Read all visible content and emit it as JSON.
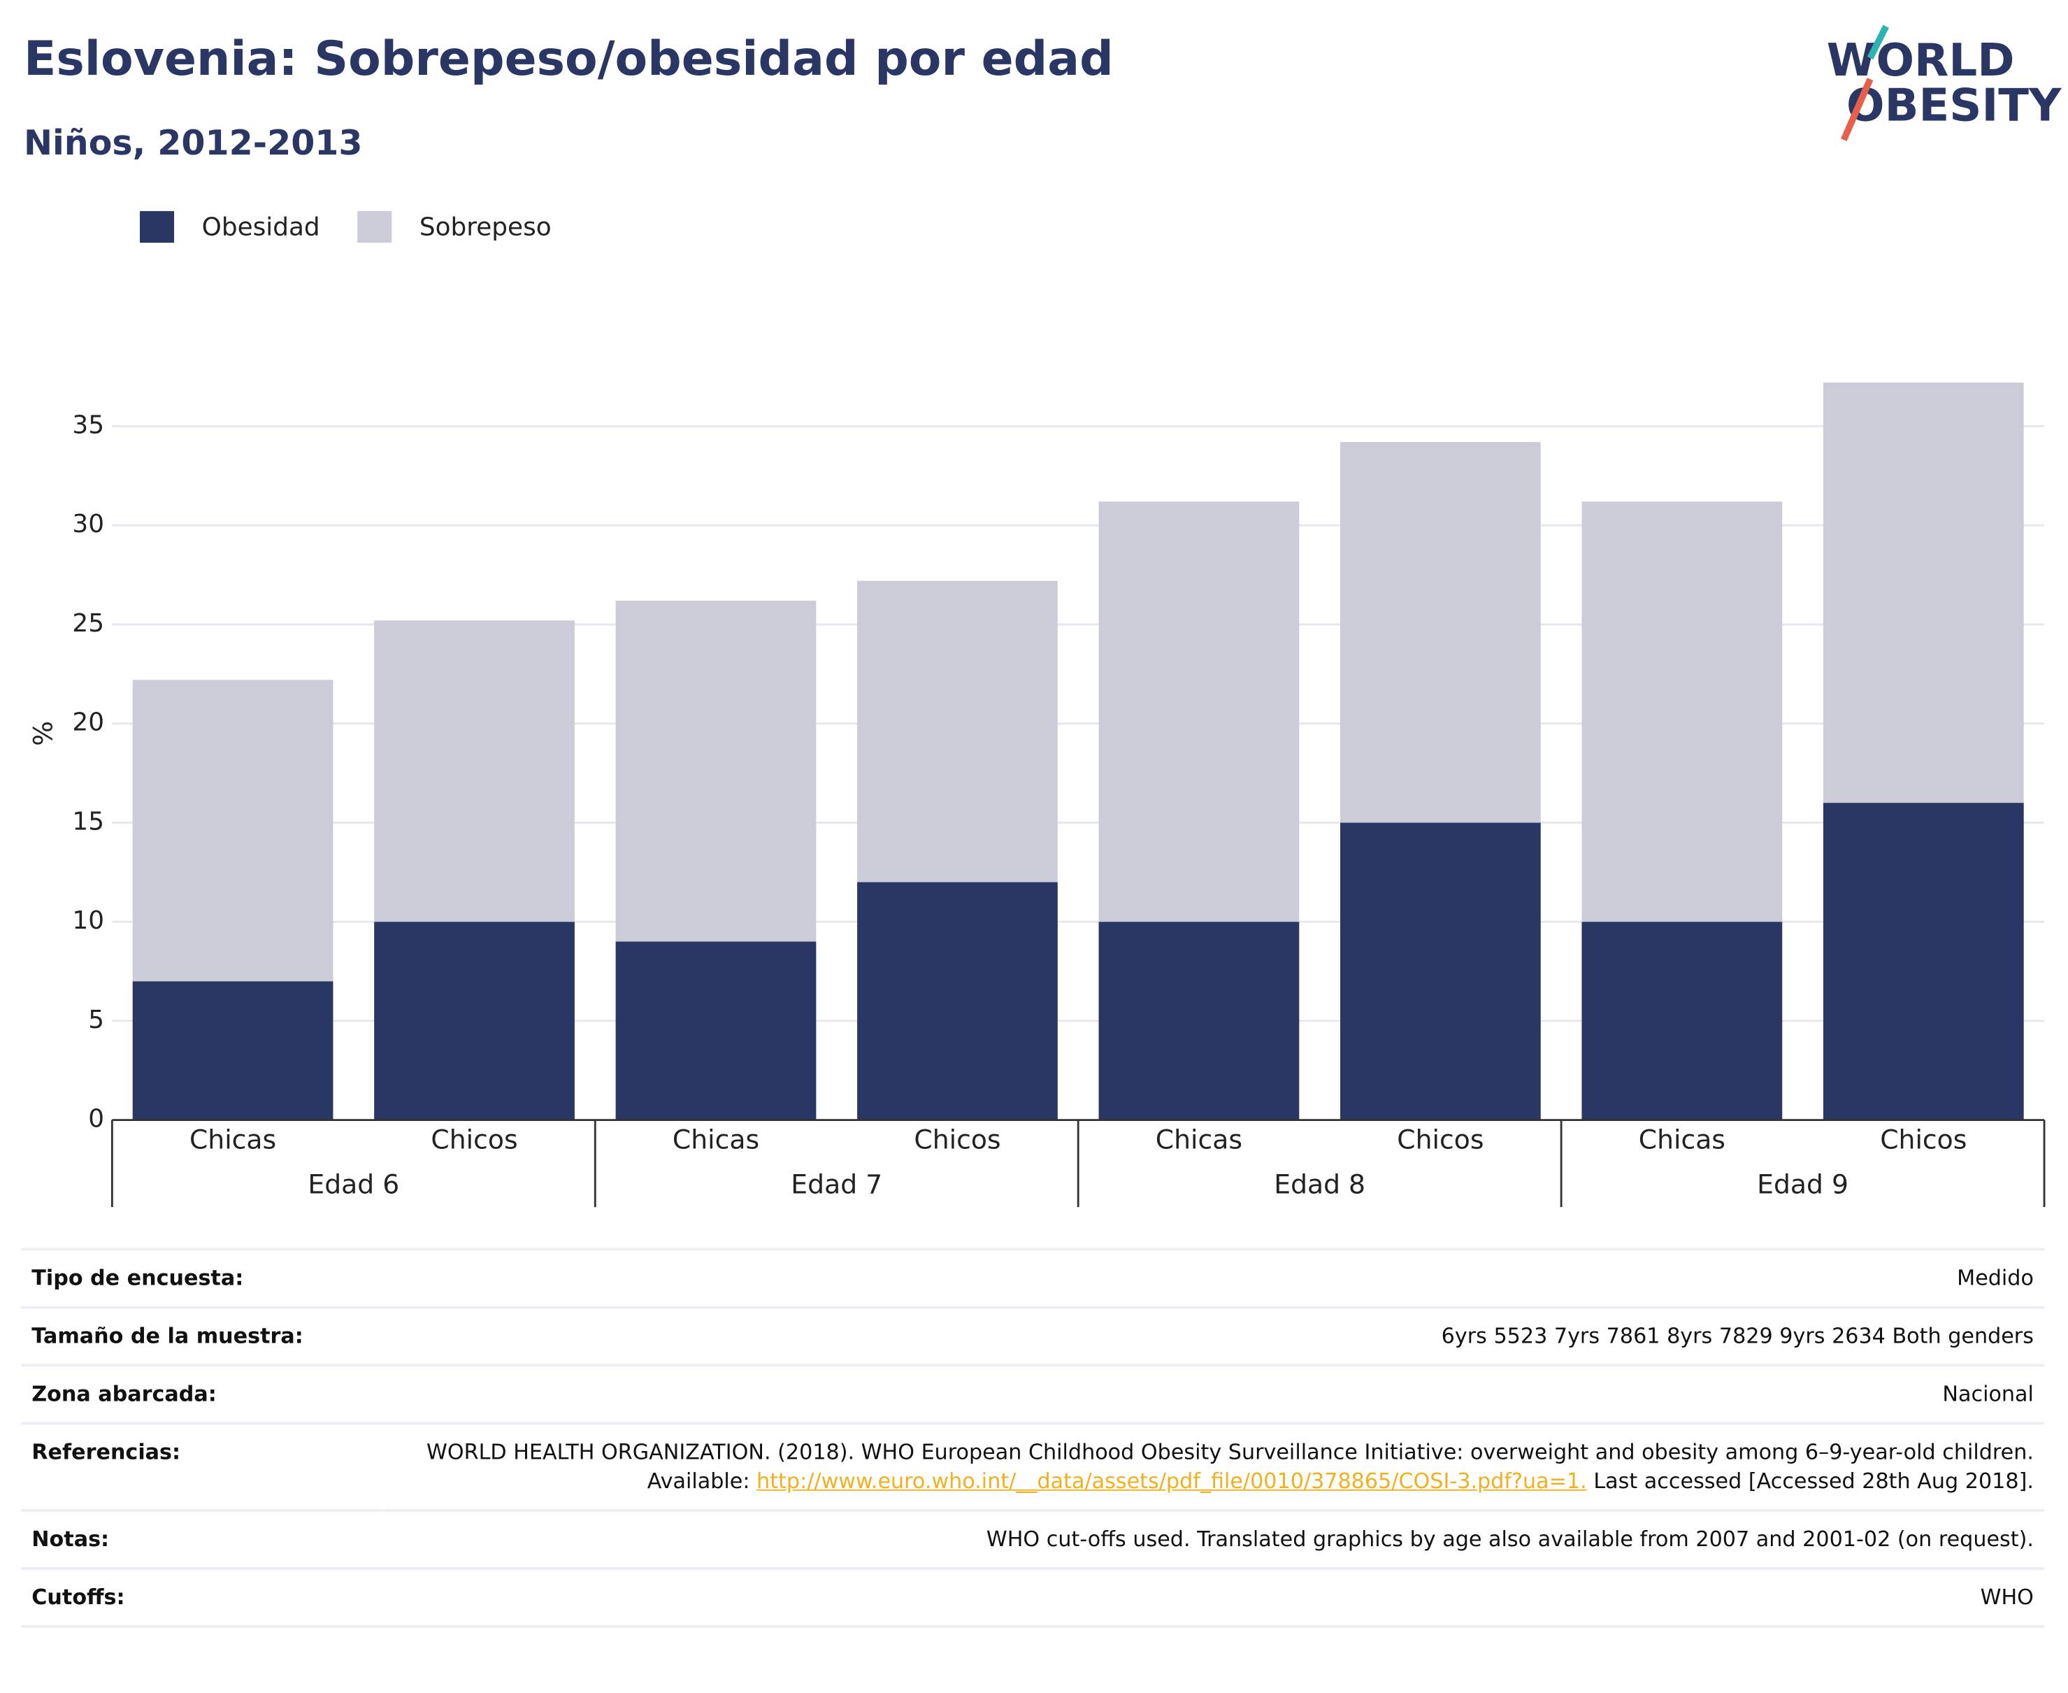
{
  "chart_data": {
    "type": "stacked_bar",
    "title": "Eslovenia: Sobrepeso/obesidad por edad",
    "subtitle": "Niños, 2012-2013",
    "y_label": "%",
    "categories": [
      "Chicas",
      "Chicos",
      "Chicas",
      "Chicos",
      "Chicas",
      "Chicos",
      "Chicas",
      "Chicos"
    ],
    "groups": [
      "Edad 6",
      "Edad 7",
      "Edad 8",
      "Edad 9"
    ],
    "series": [
      {
        "name": "Obesidad",
        "color": "#2a3664",
        "values": [
          7,
          10,
          9,
          12,
          10,
          15,
          10,
          16
        ]
      },
      {
        "name": "Sobrepeso",
        "color": "#cbccd8",
        "values": [
          15.2,
          15.2,
          17.2,
          15.2,
          21.2,
          19.2,
          21.2,
          21.2
        ]
      }
    ],
    "ylim": [
      0,
      38
    ],
    "yticks": [
      0,
      5,
      10,
      15,
      20,
      25,
      30,
      35
    ],
    "grid": true
  },
  "logo": {
    "line1": "WORLD",
    "line2": "OBESITY"
  },
  "table": {
    "rows": [
      {
        "label": "Tipo de encuesta:",
        "value": "Medido"
      },
      {
        "label": "Tamaño de la muestra:",
        "value": "6yrs 5523 7yrs 7861 8yrs 7829 9yrs 2634 Both genders"
      },
      {
        "label": "Zona abarcada:",
        "value": "Nacional"
      },
      {
        "label": "Referencias:",
        "value": "WORLD HEALTH ORGANIZATION. (2018). WHO European Childhood Obesity Surveillance Initiative: overweight and obesity among 6–9-year-old children. Available:",
        "link": "http://www.euro.who.int/__data/assets/pdf_file/0010/378865/COSI-3.pdf?ua=1.",
        "after": "Last accessed [Accessed 28th Aug 2018]."
      },
      {
        "label": "Notas:",
        "value": "WHO cut-offs used. Translated graphics by age also available from 2007 and 2001-02 (on request)."
      },
      {
        "label": "Cutoffs:",
        "value": "WHO"
      }
    ]
  }
}
